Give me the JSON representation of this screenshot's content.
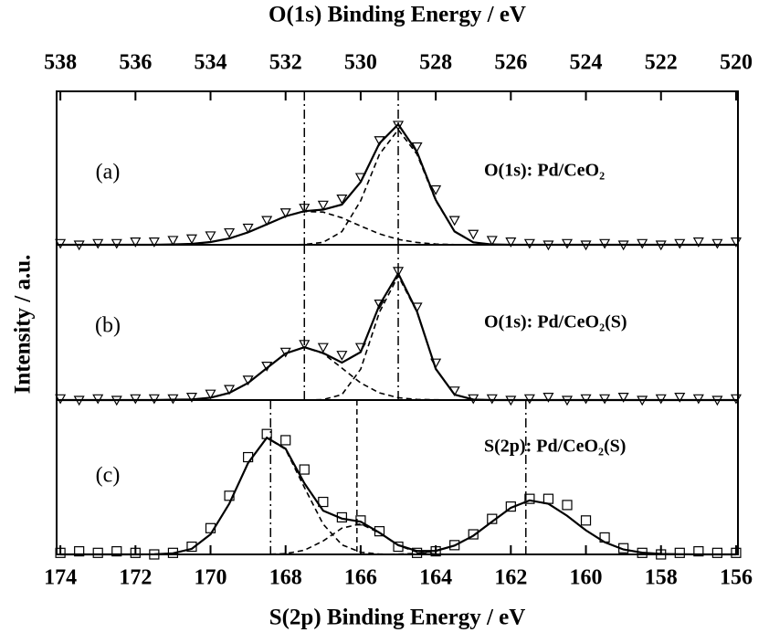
{
  "chart_data": [
    {
      "type": "line",
      "xlabel": "O(1s) Binding Energy / eV",
      "xaxis": "top",
      "label": "(a)",
      "annotation": "O(1s): Pd/CeO₂",
      "x": [
        538,
        537.5,
        537,
        536.5,
        536,
        535.5,
        535,
        534.5,
        534,
        533.5,
        533,
        532.5,
        532,
        531.5,
        531,
        530.5,
        530,
        529.5,
        529,
        528.5,
        528,
        527.5,
        527,
        526.5,
        526,
        525.5,
        525,
        524.5,
        524,
        523.5,
        523,
        522.5,
        522,
        521.5,
        521,
        520.5,
        520
      ],
      "xlim": [
        538.1,
        519.95
      ],
      "xticks": [
        538,
        536,
        534,
        532,
        530,
        528,
        526,
        524,
        522,
        520
      ],
      "ylim": [
        0,
        1
      ],
      "vlines": [
        {
          "x": 531.5,
          "dash": "dashdot"
        },
        {
          "x": 529,
          "dash": "dashdot"
        }
      ],
      "series": [
        {
          "marker": "triangle",
          "color": "#000000",
          "values": [
            0.01,
            0,
            0.01,
            0.01,
            0.02,
            0.02,
            0.03,
            0.04,
            0.06,
            0.08,
            0.11,
            0.16,
            0.21,
            0.24,
            0.26,
            0.3,
            0.44,
            0.68,
            0.78,
            0.64,
            0.36,
            0.16,
            0.07,
            0.03,
            0.02,
            0.01,
            0,
            0.01,
            0,
            0.01,
            0,
            0.01,
            0,
            0.01,
            0.02,
            0.01,
            0.02
          ]
        },
        {
          "line": "solid",
          "color": "#000000",
          "values": [
            0,
            0,
            0,
            0,
            0,
            0,
            0.002,
            0.006,
            0.018,
            0.041,
            0.081,
            0.133,
            0.186,
            0.219,
            0.229,
            0.262,
            0.409,
            0.661,
            0.785,
            0.605,
            0.292,
            0.087,
            0.016,
            0.002,
            0,
            0,
            0,
            0,
            0,
            0,
            0,
            0,
            0,
            0,
            0,
            0,
            0
          ]
        },
        {
          "line": "dashed",
          "color": "#000000",
          "values": [
            0,
            0,
            0,
            0,
            0,
            0,
            0,
            0,
            0,
            0,
            0,
            0,
            0,
            0.002,
            0.016,
            0.086,
            0.287,
            0.59,
            0.75,
            0.59,
            0.287,
            0.086,
            0.016,
            0.002,
            0,
            0,
            0,
            0,
            0,
            0,
            0,
            0,
            0,
            0,
            0,
            0,
            0
          ]
        },
        {
          "line": "dashed",
          "color": "#000000",
          "values": [
            0,
            0,
            0,
            0,
            0,
            0,
            0.002,
            0.006,
            0.018,
            0.041,
            0.081,
            0.133,
            0.186,
            0.217,
            0.213,
            0.176,
            0.122,
            0.071,
            0.035,
            0.015,
            0.005,
            0.001,
            0,
            0,
            0,
            0,
            0,
            0,
            0,
            0,
            0,
            0,
            0,
            0,
            0,
            0,
            0
          ]
        }
      ]
    },
    {
      "type": "line",
      "ylabel": "Intensity / a.u.",
      "label": "(b)",
      "annotation": "O(1s): Pd/CeO₂(S)",
      "x": [
        538,
        537.5,
        537,
        536.5,
        536,
        535.5,
        535,
        534.5,
        534,
        533.5,
        533,
        532.5,
        532,
        531.5,
        531,
        530.5,
        530,
        529.5,
        529,
        528.5,
        528,
        527.5,
        527,
        526.5,
        526,
        525.5,
        525,
        524.5,
        524,
        523.5,
        523,
        522.5,
        522,
        521.5,
        521,
        520.5,
        520
      ],
      "xlim": [
        538.1,
        519.95
      ],
      "ylim": [
        0,
        1
      ],
      "vlines": [
        {
          "x": 531.5,
          "dash": "dashdot"
        },
        {
          "x": 529,
          "dash": "dashdot"
        }
      ],
      "series": [
        {
          "marker": "triangle",
          "color": "#000000",
          "values": [
            0.01,
            0,
            0.01,
            0,
            0.01,
            0.01,
            0.01,
            0.02,
            0.04,
            0.07,
            0.13,
            0.22,
            0.31,
            0.36,
            0.34,
            0.29,
            0.34,
            0.62,
            0.83,
            0.6,
            0.24,
            0.06,
            0.01,
            0.01,
            0,
            0.01,
            0.02,
            0,
            0.01,
            0.01,
            0.02,
            0,
            0.01,
            0.02,
            0.01,
            0,
            0.01
          ]
        },
        {
          "line": "solid",
          "color": "#000000",
          "values": [
            0,
            0,
            0,
            0,
            0,
            0,
            0.002,
            0.004,
            0.015,
            0.046,
            0.11,
            0.206,
            0.3,
            0.34,
            0.303,
            0.241,
            0.309,
            0.612,
            0.815,
            0.57,
            0.201,
            0.035,
            0.003,
            0,
            0,
            0,
            0,
            0,
            0,
            0,
            0,
            0,
            0,
            0,
            0,
            0,
            0
          ]
        },
        {
          "line": "dashed",
          "color": "#000000",
          "values": [
            0,
            0,
            0,
            0,
            0,
            0,
            0,
            0,
            0,
            0,
            0,
            0,
            0,
            0,
            0.003,
            0.035,
            0.199,
            0.566,
            0.8,
            0.566,
            0.199,
            0.035,
            0.003,
            0,
            0,
            0,
            0,
            0,
            0,
            0,
            0,
            0,
            0,
            0,
            0,
            0,
            0
          ]
        },
        {
          "line": "dashed",
          "color": "#000000",
          "values": [
            0,
            0,
            0,
            0,
            0,
            0,
            0.002,
            0.004,
            0.015,
            0.046,
            0.11,
            0.206,
            0.3,
            0.34,
            0.3,
            0.206,
            0.11,
            0.046,
            0.015,
            0.004,
            0.002,
            0,
            0,
            0,
            0,
            0,
            0,
            0,
            0,
            0,
            0,
            0,
            0,
            0,
            0,
            0,
            0
          ]
        }
      ]
    },
    {
      "type": "line",
      "xlabel": "S(2p) Binding Energy / eV",
      "xaxis": "bottom",
      "label": "(c)",
      "annotation": "S(2p): Pd/CeO₂(S)",
      "x": [
        174,
        173.5,
        173,
        172.5,
        172,
        171.5,
        171,
        170.5,
        170,
        169.5,
        169,
        168.5,
        168,
        167.5,
        167,
        166.5,
        166,
        165.5,
        165,
        164.5,
        164,
        163.5,
        163,
        162.5,
        162,
        161.5,
        161,
        160.5,
        160,
        159.5,
        159,
        158.5,
        158,
        157.5,
        157,
        156.5,
        156
      ],
      "xlim": [
        174.1,
        155.95
      ],
      "xticks": [
        174,
        172,
        170,
        168,
        166,
        164,
        162,
        160,
        158,
        156
      ],
      "ylim": [
        0,
        1
      ],
      "vlines": [
        {
          "x": 168.4,
          "dash": "dashdot"
        },
        {
          "x": 166.1,
          "dash": "dashed"
        },
        {
          "x": 161.6,
          "dash": "dashdot"
        }
      ],
      "series": [
        {
          "marker": "square",
          "color": "#000000",
          "values": [
            0.01,
            0.02,
            0.01,
            0.02,
            0.01,
            0,
            0.01,
            0.05,
            0.17,
            0.38,
            0.63,
            0.78,
            0.74,
            0.55,
            0.34,
            0.24,
            0.22,
            0.15,
            0.05,
            0.01,
            0.02,
            0.06,
            0.13,
            0.23,
            0.31,
            0.36,
            0.36,
            0.32,
            0.22,
            0.11,
            0.04,
            0.01,
            0,
            0.01,
            0.02,
            0.01,
            0.01
          ]
        },
        {
          "line": "solid",
          "color": "#000000",
          "values": [
            0,
            0,
            0,
            0,
            0,
            0.001,
            0.007,
            0.036,
            0.13,
            0.329,
            0.592,
            0.756,
            0.685,
            0.461,
            0.283,
            0.232,
            0.212,
            0.141,
            0.06,
            0.022,
            0.023,
            0.057,
            0.121,
            0.212,
            0.302,
            0.35,
            0.328,
            0.25,
            0.156,
            0.079,
            0.032,
            0.011,
            0.003,
            0.001,
            0,
            0,
            0
          ]
        },
        {
          "line": "dashed",
          "color": "#000000",
          "values": [
            0,
            0,
            0,
            0,
            0,
            0.001,
            0.007,
            0.036,
            0.13,
            0.329,
            0.592,
            0.755,
            0.68,
            0.434,
            0.196,
            0.062,
            0.014,
            0.002,
            0,
            0,
            0,
            0,
            0,
            0,
            0,
            0,
            0,
            0,
            0,
            0,
            0,
            0,
            0,
            0,
            0,
            0,
            0
          ]
        },
        {
          "line": "dashed",
          "color": "#000000",
          "values": [
            0,
            0,
            0,
            0,
            0,
            0,
            0,
            0,
            0,
            0,
            0,
            0.001,
            0.005,
            0.027,
            0.087,
            0.17,
            0.198,
            0.139,
            0.058,
            0.015,
            0.002,
            0,
            0,
            0,
            0,
            0,
            0,
            0,
            0,
            0,
            0,
            0,
            0,
            0,
            0,
            0,
            0
          ]
        },
        {
          "line": "dashed",
          "color": "#000000",
          "values": [
            0,
            0,
            0,
            0,
            0,
            0,
            0,
            0,
            0,
            0,
            0,
            0,
            0,
            0,
            0,
            0,
            0,
            0,
            0.002,
            0.007,
            0.021,
            0.057,
            0.121,
            0.212,
            0.302,
            0.35,
            0.328,
            0.25,
            0.156,
            0.079,
            0.032,
            0.011,
            0.003,
            0.001,
            0,
            0,
            0
          ]
        }
      ]
    }
  ]
}
